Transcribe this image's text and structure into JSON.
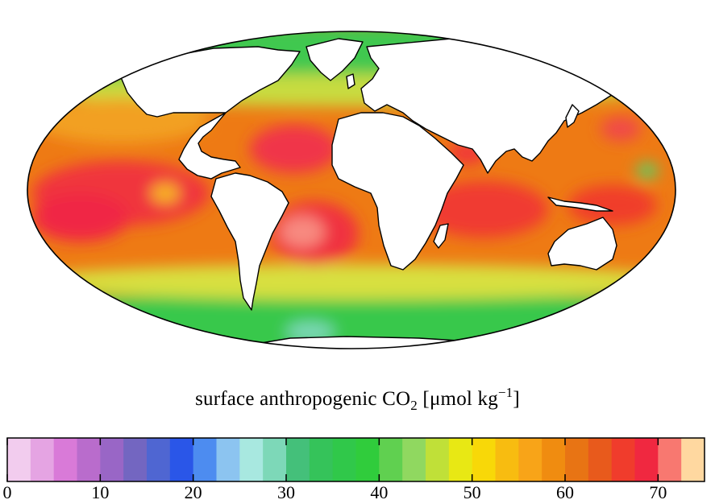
{
  "caption": {
    "prefix": "surface anthropogenic CO",
    "subscript": "2",
    "units_open": " [μmol kg",
    "superscript": "−1",
    "units_close": "]"
  },
  "colorbar": {
    "min": 0,
    "max": 75,
    "step": 2.5,
    "tick_labels": [
      "0",
      "10",
      "20",
      "30",
      "40",
      "50",
      "60",
      "70"
    ],
    "tick_values": [
      0,
      10,
      20,
      30,
      40,
      50,
      60,
      70
    ],
    "colors": [
      "#f2ccee",
      "#e5a4e3",
      "#d97ad8",
      "#b96ccc",
      "#9966c6",
      "#7366c1",
      "#4f66d2",
      "#2a56e8",
      "#4d8cf0",
      "#8cc4f0",
      "#a8e8e0",
      "#7dd8b8",
      "#44c07a",
      "#35c35a",
      "#30c84a",
      "#30cc3c",
      "#60d050",
      "#90d860",
      "#c0e038",
      "#e8e814",
      "#f8d808",
      "#f8bc10",
      "#f8a418",
      "#f08c10",
      "#e87414",
      "#e85a1c",
      "#f03c2c",
      "#f02840",
      "#f87870",
      "#ffd8a0"
    ]
  }
}
